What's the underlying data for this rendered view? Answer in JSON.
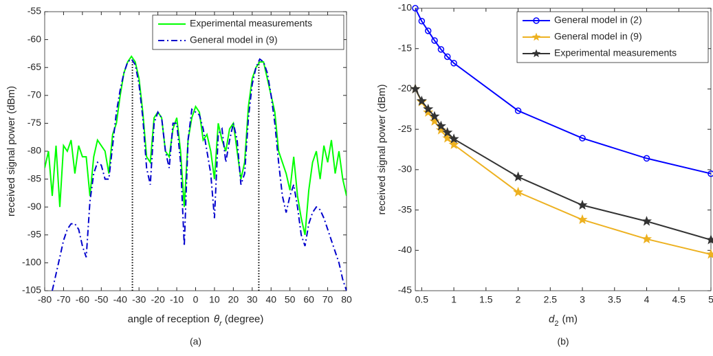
{
  "chart_data": [
    {
      "type": "line",
      "panel": "(a)",
      "y_label": "received signal power (dBm)",
      "x_label": [
        "angle of reception",
        "θ",
        "r",
        "(degree)"
      ],
      "xlim": [
        -80,
        80
      ],
      "xticks": [
        -80,
        -70,
        -60,
        -50,
        -40,
        -30,
        -20,
        -10,
        0,
        10,
        20,
        30,
        40,
        50,
        60,
        70,
        80
      ],
      "ylim": [
        -105,
        -55
      ],
      "yticks": [
        -105,
        -100,
        -95,
        -90,
        -85,
        -80,
        -75,
        -70,
        -65,
        -60,
        -55
      ],
      "legend": "top-right",
      "vlines": [
        {
          "x": -33.5,
          "y": -64
        },
        {
          "x": 33.5,
          "y": -64
        }
      ],
      "series": [
        {
          "name": "Experimental measurements",
          "color": "#00ff00",
          "dash": "solid",
          "x": [
            -80,
            -78,
            -76,
            -74,
            -72,
            -70,
            -68,
            -66,
            -64,
            -62,
            -60,
            -58,
            -56,
            -54,
            -52,
            -50,
            -48,
            -46,
            -44,
            -42,
            -40,
            -38,
            -36,
            -34,
            -32,
            -30,
            -28,
            -26,
            -24,
            -22,
            -20,
            -18,
            -16,
            -14,
            -12,
            -10,
            -8,
            -6,
            -4,
            -2,
            0,
            2,
            4,
            6,
            8,
            10,
            12,
            14,
            16,
            18,
            20,
            22,
            24,
            26,
            28,
            30,
            32,
            34,
            36,
            38,
            40,
            42,
            44,
            46,
            48,
            50,
            52,
            54,
            56,
            58,
            60,
            62,
            64,
            66,
            68,
            70,
            72,
            74,
            76,
            78,
            80
          ],
          "values": [
            -83,
            -80,
            -88,
            -79,
            -90,
            -79,
            -80,
            -78,
            -84,
            -79,
            -81,
            -81,
            -88,
            -81,
            -78,
            -79,
            -80,
            -84,
            -77,
            -75,
            -70,
            -66,
            -64,
            -63,
            -64,
            -67,
            -73,
            -81,
            -82,
            -74,
            -73,
            -74,
            -80,
            -81,
            -76,
            -74,
            -80,
            -90,
            -78,
            -74,
            -72,
            -73,
            -78,
            -77,
            -80,
            -85,
            -75,
            -78,
            -80,
            -76,
            -75,
            -80,
            -85,
            -82,
            -72,
            -67,
            -65,
            -64,
            -64,
            -67,
            -70,
            -73,
            -80,
            -82,
            -84,
            -87,
            -81,
            -88,
            -92,
            -95,
            -87,
            -82,
            -80,
            -85,
            -79,
            -82,
            -78,
            -84,
            -80,
            -85,
            -88
          ]
        },
        {
          "name": "General model in (9)",
          "color": "#0000cc",
          "dash": "dashdot",
          "x": [
            -76,
            -74,
            -72,
            -70,
            -68,
            -66,
            -64,
            -62,
            -60,
            -58,
            -56,
            -54,
            -52,
            -50,
            -48,
            -46,
            -44,
            -42,
            -40,
            -38,
            -36,
            -34,
            -32,
            -30,
            -28,
            -26,
            -24,
            -22,
            -20,
            -18,
            -16,
            -14,
            -12,
            -10,
            -8,
            -6,
            -4,
            -2,
            0,
            2,
            4,
            6,
            8,
            10,
            12,
            14,
            16,
            18,
            20,
            22,
            24,
            26,
            28,
            30,
            32,
            34,
            36,
            38,
            40,
            42,
            44,
            46,
            48,
            50,
            52,
            54,
            56,
            58,
            60,
            62,
            64,
            66,
            68,
            70,
            72,
            74,
            76,
            78,
            80
          ],
          "values": [
            -105,
            -102,
            -99,
            -96,
            -94,
            -93,
            -93,
            -94,
            -97,
            -99,
            -89,
            -84,
            -82,
            -82.5,
            -85,
            -85,
            -79,
            -73,
            -69,
            -66,
            -64,
            -63.5,
            -64.5,
            -68,
            -74,
            -83,
            -86,
            -75,
            -73,
            -74,
            -80,
            -83,
            -75,
            -75,
            -82,
            -97,
            -78,
            -72.5,
            -73,
            -73.5,
            -76,
            -80,
            -84,
            -92,
            -77,
            -76,
            -82,
            -78,
            -75,
            -78,
            -86,
            -84,
            -74,
            -68,
            -65,
            -63.5,
            -64,
            -66,
            -70,
            -75,
            -82,
            -88,
            -91,
            -88,
            -86,
            -90,
            -95,
            -97,
            -93,
            -91,
            -90,
            -90.5,
            -92,
            -94,
            -96,
            -98,
            -100,
            -103,
            -105
          ]
        }
      ]
    },
    {
      "type": "line",
      "panel": "(b)",
      "y_label": "received signal power (dBm)",
      "x_label": [
        "d",
        "2",
        "(m)"
      ],
      "xlim": [
        0.4,
        5
      ],
      "xticks": [
        0.5,
        1,
        1.5,
        2,
        2.5,
        3,
        3.5,
        4,
        4.5,
        5
      ],
      "ylim": [
        -45,
        -10
      ],
      "yticks": [
        -45,
        -40,
        -35,
        -30,
        -25,
        -20,
        -15,
        -10
      ],
      "legend": "top-right",
      "series": [
        {
          "name": "General model in (2)",
          "color": "#0000ff",
          "marker": "circle",
          "x": [
            0.4,
            0.5,
            0.6,
            0.7,
            0.8,
            0.9,
            1,
            2,
            3,
            4,
            5
          ],
          "values": [
            -10,
            -11.6,
            -12.8,
            -14,
            -15.1,
            -16,
            -16.8,
            -22.7,
            -26.1,
            -28.6,
            -30.5
          ]
        },
        {
          "name": "General model in (9)",
          "color": "#edb120",
          "marker": "star",
          "x": [
            0.4,
            0.5,
            0.6,
            0.7,
            0.8,
            0.9,
            1,
            2,
            3,
            4,
            5
          ],
          "values": [
            -20,
            -21.6,
            -22.9,
            -24,
            -25.1,
            -26.1,
            -26.9,
            -32.8,
            -36.2,
            -38.6,
            -40.5
          ]
        },
        {
          "name": "Experimental measurements",
          "color": "#333333",
          "marker": "star",
          "x": [
            0.4,
            0.5,
            0.6,
            0.7,
            0.8,
            0.9,
            1,
            2,
            3,
            4,
            5
          ],
          "values": [
            -20,
            -21.5,
            -22.5,
            -23.4,
            -24.6,
            -25.4,
            -26.2,
            -30.9,
            -34.4,
            -36.4,
            -38.7
          ]
        }
      ]
    }
  ]
}
